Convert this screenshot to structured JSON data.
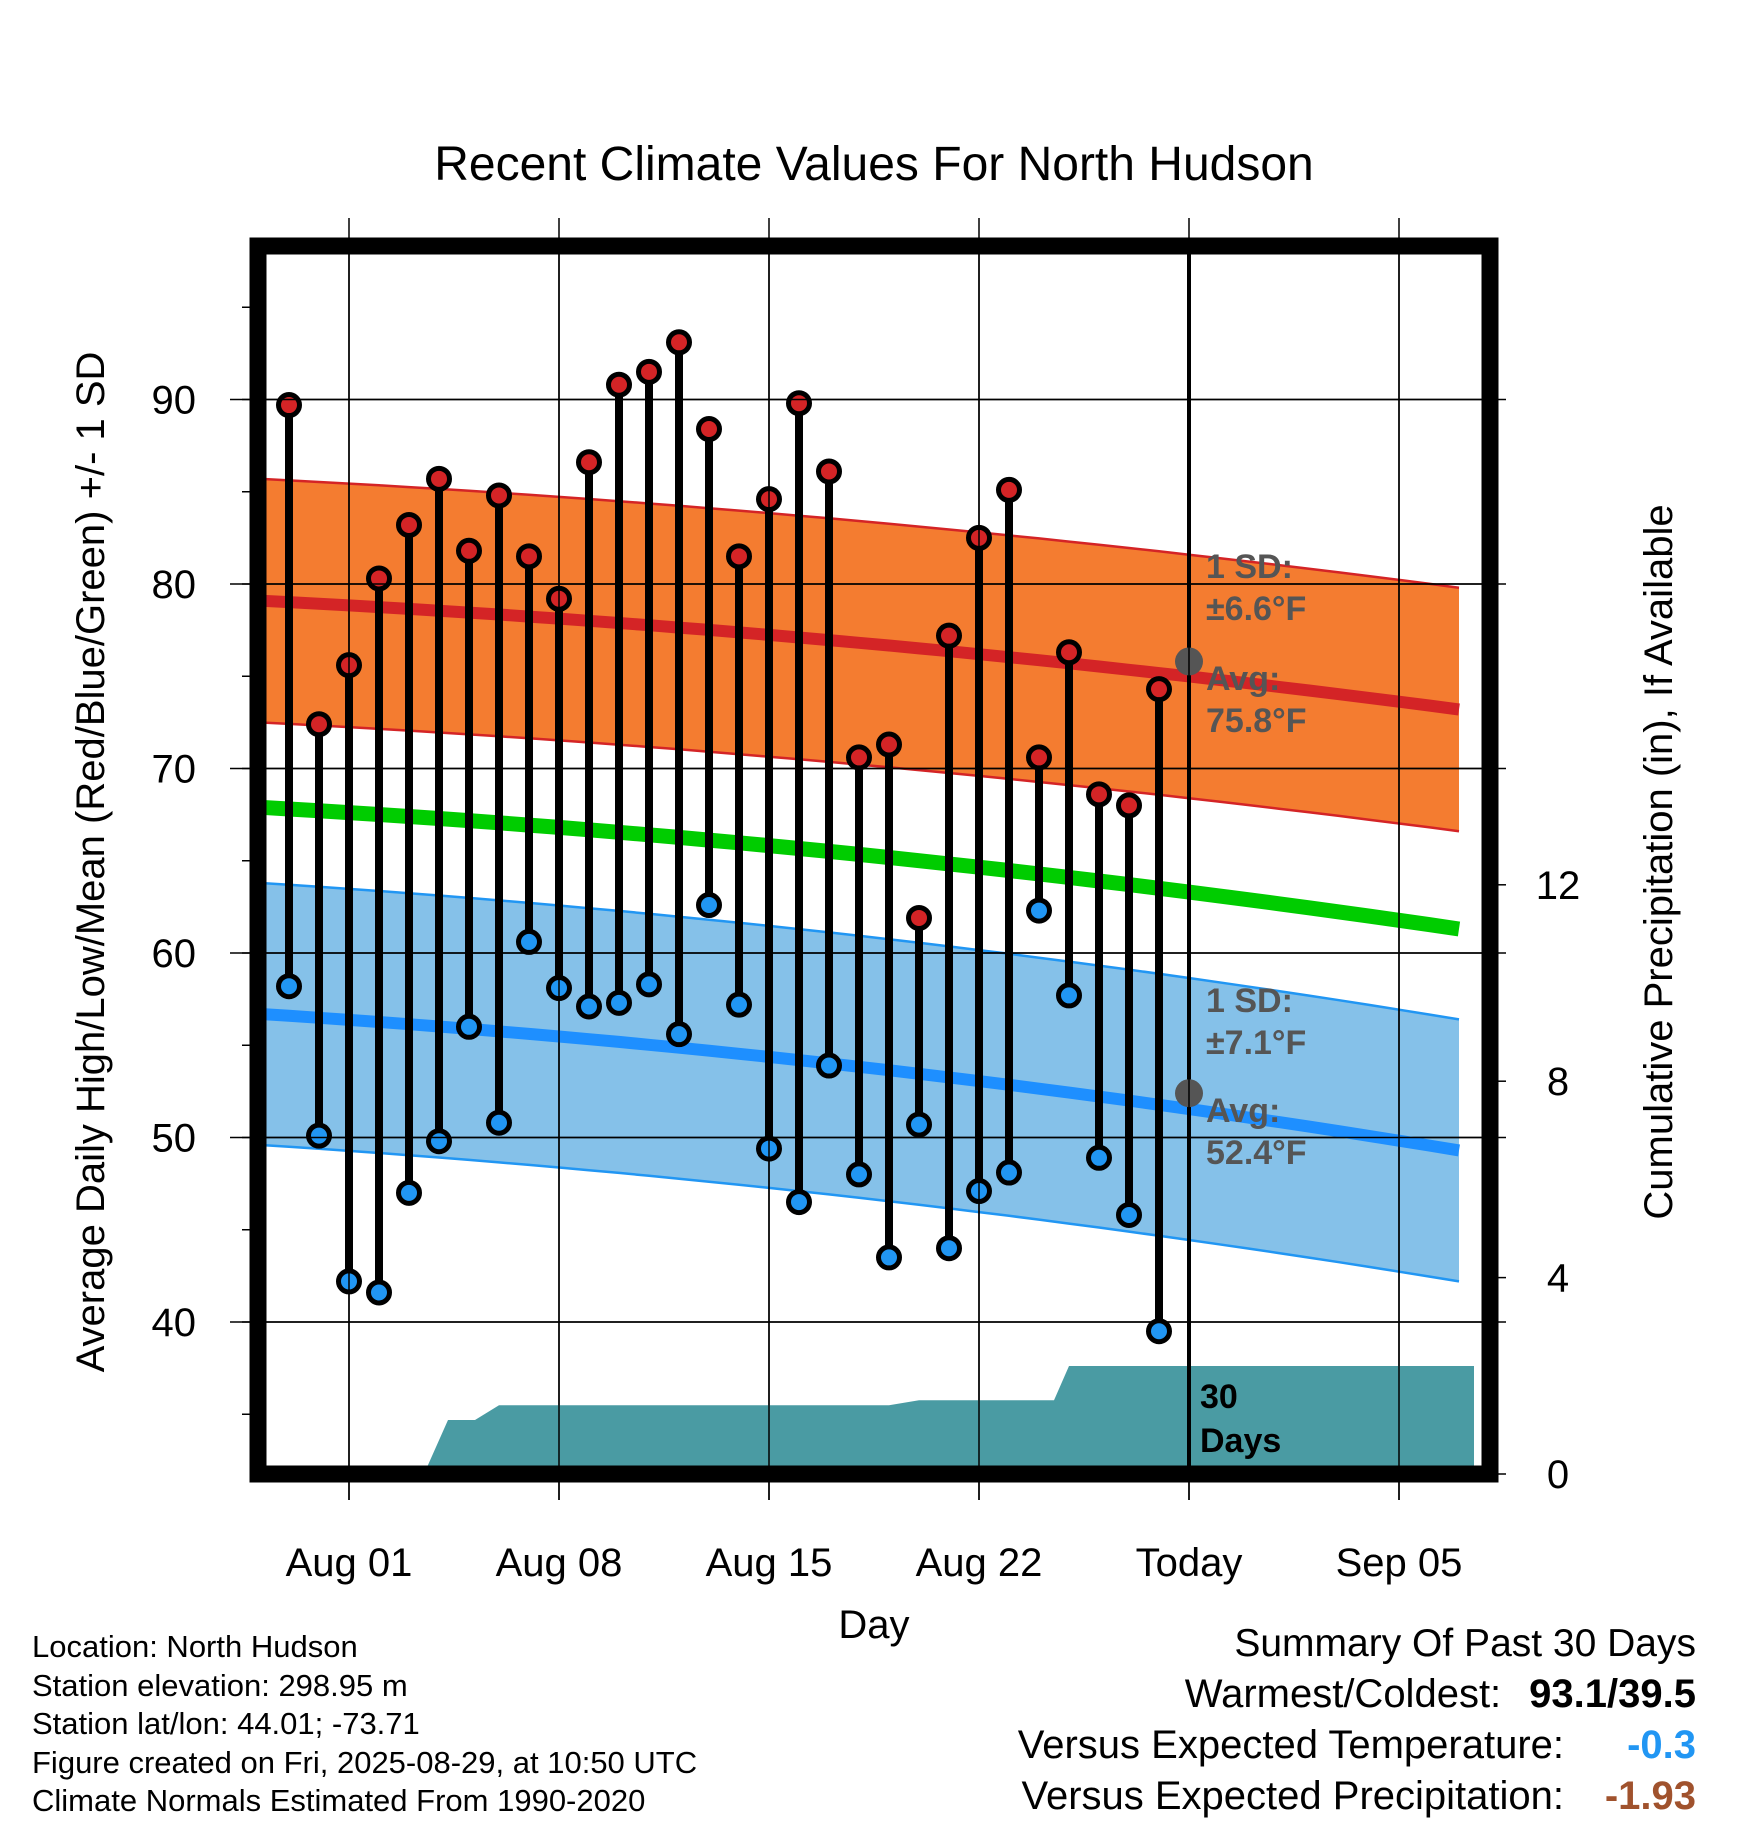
{
  "chart_data": {
    "type": "line",
    "title": "Recent Climate Values For North Hudson",
    "xlabel": "Day",
    "ylabel": "Average Daily High/Low/Mean (Red/Blue/Green) +/- 1 SD",
    "y2label": "Cumulative Precipitation (in), If Available",
    "x_tick_labels": [
      "Aug 01",
      "Aug 08",
      "Aug 15",
      "Aug 22",
      "Today",
      "Sep 05"
    ],
    "x_tick_days": [
      1,
      8,
      15,
      22,
      29,
      36
    ],
    "xlim": [
      -1.8,
      38.5
    ],
    "y_tick_labels": [
      "40",
      "50",
      "60",
      "70",
      "80",
      "90"
    ],
    "ylim": [
      32,
      99
    ],
    "y2_tick_labels": [
      "0",
      "4",
      "8",
      "12"
    ],
    "y2lim": [
      0,
      25
    ],
    "today_day": 29,
    "days": [
      -1,
      0,
      1,
      2,
      3,
      4,
      5,
      6,
      7,
      8,
      9,
      10,
      11,
      12,
      13,
      14,
      15,
      16,
      17,
      18,
      19,
      20,
      21,
      22,
      23,
      24,
      25,
      26,
      27,
      28
    ],
    "series": [
      {
        "name": "High",
        "color": "#d42426",
        "values": [
          89.7,
          72.4,
          75.6,
          80.3,
          83.2,
          85.7,
          81.8,
          84.8,
          81.5,
          79.2,
          86.6,
          90.8,
          91.5,
          93.1,
          88.4,
          81.5,
          84.6,
          89.8,
          86.1,
          70.6,
          71.3,
          61.9,
          77.2,
          82.5,
          85.1,
          70.6,
          76.3,
          68.6,
          68.0,
          74.3
        ]
      },
      {
        "name": "Low",
        "color": "#2196f3",
        "values": [
          58.2,
          50.1,
          42.2,
          41.6,
          47.0,
          49.8,
          56.0,
          50.8,
          60.6,
          58.1,
          57.1,
          57.3,
          58.3,
          55.6,
          62.6,
          57.2,
          49.4,
          46.5,
          53.9,
          48.0,
          43.5,
          50.7,
          44.0,
          47.1,
          48.1,
          62.3,
          57.7,
          48.9,
          45.8,
          39.5
        ]
      }
    ],
    "normal_high": {
      "x": [
        -2,
        38
      ],
      "avg": [
        79.1,
        73.2
      ],
      "sd": 6.6,
      "label_avg": "Avg:",
      "label_avg_value": "75.8°F",
      "label_sd": "1 SD:",
      "label_sd_value": "±6.6°F"
    },
    "normal_low": {
      "x": [
        -2,
        38
      ],
      "avg": [
        56.7,
        49.3
      ],
      "sd": 7.1,
      "label_avg": "Avg:",
      "label_avg_value": "52.4°F",
      "label_sd": "1 SD:",
      "label_sd_value": "±7.1°F"
    },
    "normal_mean": {
      "x": [
        -2,
        38
      ],
      "values": [
        67.9,
        61.3
      ]
    },
    "precip": {
      "color": "#4a9ba3",
      "x": [
        3.5,
        4.3,
        5.2,
        6.0,
        38.5
      ],
      "steps": [
        [
          3.5,
          0.0
        ],
        [
          4.3,
          1.1
        ],
        [
          5.2,
          1.1
        ],
        [
          6.0,
          1.4
        ],
        [
          13.0,
          1.4
        ],
        [
          19.0,
          1.4
        ],
        [
          20.0,
          1.5
        ],
        [
          23.5,
          1.5
        ],
        [
          24.5,
          1.5
        ],
        [
          25.0,
          2.2
        ],
        [
          38.5,
          2.2
        ]
      ],
      "label_line1": "30",
      "label_line2": "Days"
    },
    "grid": true
  },
  "info": {
    "location": "Location: North Hudson",
    "elevation": "Station elevation: 298.95 m",
    "latlon": "Station lat/lon: 44.01; -73.71",
    "created": "Figure created on Fri, 2025-08-29, at 10:50 UTC",
    "normals": "Climate Normals Estimated From 1990-2020"
  },
  "summary": {
    "title": "Summary Of Past 30 Days",
    "warmest_label": "Warmest/Coldest:",
    "warmest_value": "93.1/39.5",
    "temp_label": "Versus Expected Temperature:",
    "temp_value": "-0.3",
    "temp_color": "#2196f3",
    "precip_label": "Versus Expected Precipitation:",
    "precip_value": "-1.93",
    "precip_color": "#a0522d"
  }
}
